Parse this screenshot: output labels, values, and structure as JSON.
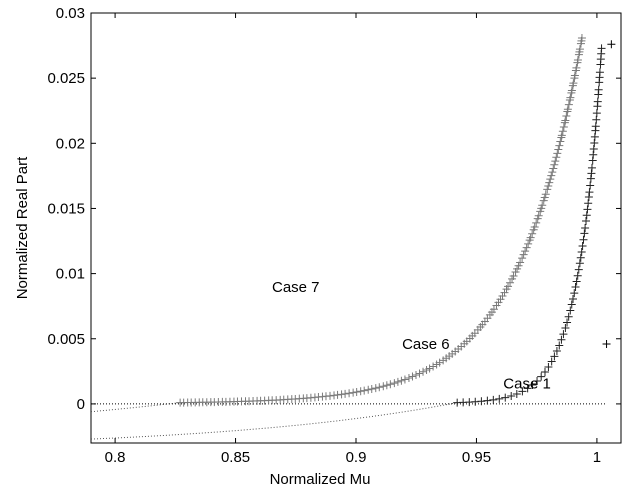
{
  "chart_data": {
    "type": "scatter",
    "title": "",
    "xlabel": "Normalized Mu",
    "ylabel": "Normalized Real Part",
    "xlim": [
      0.79,
      1.01
    ],
    "ylim": [
      -0.003,
      0.03
    ],
    "xticks": [
      0.8,
      0.85,
      0.9,
      0.95,
      1
    ],
    "xtick_labels": [
      "0.8",
      "0.85",
      "0.9",
      "0.95",
      "1"
    ],
    "yticks": [
      0,
      0.005,
      0.01,
      0.015,
      0.02,
      0.025,
      0.03
    ],
    "ytick_labels": [
      "0",
      "0.005",
      "0.01",
      "0.015",
      "0.02",
      "0.025",
      "0.03"
    ],
    "grid": false,
    "annotations": [
      {
        "text": "Case 7",
        "x": 0.875,
        "y": 0.0086
      },
      {
        "text": "Case 6",
        "x": 0.929,
        "y": 0.0042
      },
      {
        "text": "Case 1",
        "x": 0.971,
        "y": 0.0012
      }
    ],
    "series": [
      {
        "marker": "+",
        "color": "#7a7a7a",
        "curve": {
          "x_start": 0.827,
          "x_end": 0.994,
          "y_at_start": 0.0001,
          "y_at_end": 0.0283,
          "count": 165
        },
        "extension": {
          "style": "dotted",
          "x_start": 0.79,
          "x_end": 0.827,
          "y_at_start": -0.0006,
          "y_at_end": 0.0001
        }
      },
      {
        "marker": "+",
        "color": "#222222",
        "curve": {
          "x_start": 0.942,
          "x_end": 1.002,
          "y_at_start": 0.0001,
          "y_at_end": 0.0275,
          "count": 72
        },
        "extension": {
          "style": "dotted",
          "x_start": 0.79,
          "x_end": 0.942,
          "y_at_start": -0.0027,
          "y_at_end": 0.0001
        }
      },
      {
        "marker": "+",
        "color": "#000000",
        "points": [
          [
            1.006,
            0.0276
          ],
          [
            1.004,
            0.0046
          ]
        ],
        "baseline": {
          "style": "dotted",
          "x_start": 0.79,
          "x_end": 1.004,
          "y": 0
        }
      }
    ]
  }
}
